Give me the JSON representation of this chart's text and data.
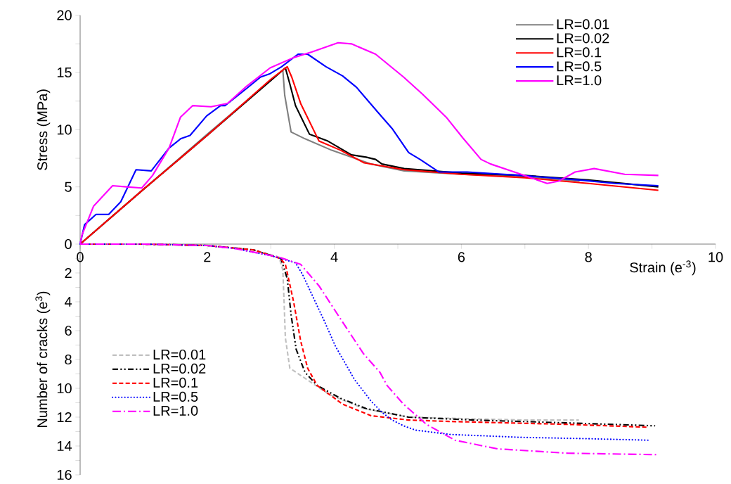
{
  "chart_data": [
    {
      "type": "line",
      "xlabel": "Strain (e$^{-3}$)",
      "ylabel": "Stress (MPa)",
      "xlim": [
        0,
        10
      ],
      "ylim": [
        0,
        20
      ],
      "xticks": [
        0,
        {
          "value": 1,
          "label": null
        },
        2,
        {
          "value": 3,
          "label": null
        },
        4,
        {
          "value": 5,
          "label": null
        },
        6,
        {
          "value": 7,
          "label": null
        },
        8,
        {
          "value": 9,
          "label": null
        },
        10
      ],
      "yticks": [
        0,
        {
          "value": 2.5,
          "label": null
        },
        5,
        {
          "value": 7.5,
          "label": null
        },
        10,
        {
          "value": 12.5,
          "label": null
        },
        15,
        {
          "value": 17.5,
          "label": null
        },
        20
      ],
      "legend": "top right",
      "line_style": "solid",
      "series": [
        {
          "name": "LR=0.01",
          "color": "#808080",
          "x": [
            0,
            1,
            2,
            3,
            3.19,
            3.22,
            3.32,
            3.54,
            3.96,
            4.58,
            5.1,
            6,
            7,
            7.86
          ],
          "values": [
            0,
            4.8,
            9.6,
            14.3,
            15.2,
            13,
            9.8,
            9.2,
            8.2,
            7.0,
            6.4,
            6.1,
            5.9,
            5.5
          ]
        },
        {
          "name": "LR=0.02",
          "color": "#000000",
          "x": [
            0,
            1,
            2,
            3,
            3.23,
            3.3,
            3.39,
            3.61,
            3.9,
            4.27,
            4.5,
            4.65,
            4.75,
            5.1,
            6,
            7,
            8,
            9.1
          ],
          "values": [
            0,
            4.8,
            9.5,
            14.3,
            15.4,
            14,
            12.1,
            9.6,
            9.0,
            7.8,
            7.6,
            7.4,
            7.0,
            6.6,
            6.2,
            6.0,
            5.6,
            5.0
          ]
        },
        {
          "name": "LR=0.1",
          "color": "#ff0000",
          "x": [
            0,
            1,
            2,
            3,
            3.26,
            3.33,
            3.47,
            3.76,
            4.1,
            4.47,
            5.1,
            6,
            7,
            8,
            9.1
          ],
          "values": [
            0,
            4.8,
            9.5,
            14.4,
            15.5,
            14.6,
            12.3,
            9.0,
            8.2,
            7.1,
            6.5,
            6.1,
            5.8,
            5.3,
            4.7
          ]
        },
        {
          "name": "LR=0.5",
          "color": "#0000ff",
          "x": [
            0,
            0.07,
            0.25,
            0.45,
            0.64,
            0.88,
            1.12,
            1.4,
            1.58,
            1.73,
            1.99,
            2.21,
            2.28,
            2.62,
            2.84,
            2.99,
            3.17,
            3.43,
            3.58,
            3.87,
            4.13,
            4.35,
            4.69,
            4.91,
            5.17,
            5.35,
            5.65,
            6.09,
            6.94,
            7.86,
            8.42,
            9.1
          ],
          "values": [
            0,
            1.7,
            2.6,
            2.6,
            3.7,
            6.5,
            6.4,
            8.4,
            9.2,
            9.5,
            11.2,
            12.1,
            12.1,
            13.6,
            14.6,
            14.9,
            15.5,
            16.6,
            16.6,
            15.5,
            14.7,
            13.7,
            11.5,
            10.1,
            8.0,
            7.4,
            6.3,
            6.3,
            6.0,
            5.6,
            5.3,
            5.1
          ]
        },
        {
          "name": "LR=1.0",
          "color": "#ff00ff",
          "x": [
            0,
            0.03,
            0.21,
            0.51,
            0.73,
            0.97,
            1.14,
            1.4,
            1.58,
            1.77,
            2.06,
            2.32,
            2.62,
            2.99,
            3.36,
            3.65,
            4.06,
            4.27,
            4.65,
            5.09,
            5.39,
            5.76,
            6.02,
            6.31,
            6.46,
            6.94,
            7.35,
            7.53,
            7.79,
            8.09,
            8.57,
            9.1
          ],
          "values": [
            0,
            0.8,
            3.3,
            5.1,
            5.0,
            4.9,
            6.0,
            8.4,
            11.1,
            12.1,
            12.0,
            12.3,
            13.8,
            15.4,
            16.3,
            16.8,
            17.6,
            17.5,
            16.6,
            14.6,
            13.1,
            11.1,
            9.3,
            7.4,
            7.0,
            6.1,
            5.3,
            5.5,
            6.3,
            6.6,
            6.1,
            6.0
          ]
        }
      ]
    },
    {
      "type": "line",
      "ylabel": "Number of cracks (e$^{3}$)",
      "xlim": [
        0,
        10
      ],
      "ylim": [
        16,
        0
      ],
      "tick_labels": "y",
      "yticks": [
        {
          "value": 1,
          "label": null
        },
        2,
        {
          "value": 3,
          "label": null
        },
        4,
        {
          "value": 5,
          "label": null
        },
        6,
        {
          "value": 7,
          "label": null
        },
        8,
        {
          "value": 9,
          "label": null
        },
        10,
        {
          "value": 11,
          "label": null
        },
        12,
        {
          "value": 13,
          "label": null
        },
        14,
        {
          "value": 15,
          "label": null
        },
        16
      ],
      "legend": "left",
      "series": [
        {
          "name": "LR=0.01",
          "color": "#c0c0c0",
          "line_style": "dashed",
          "x": [
            0,
            1,
            2,
            2.73,
            3.13,
            3.19,
            3.21,
            3.23,
            3.3,
            3.47,
            3.91,
            4.46,
            5.17,
            6,
            7,
            7.85
          ],
          "values": [
            0,
            0,
            0.1,
            0.4,
            0.9,
            1.8,
            4.0,
            6.5,
            8.6,
            9.1,
            10.4,
            11.4,
            12.0,
            12.1,
            12.2,
            12.2
          ]
        },
        {
          "name": "LR=0.02",
          "color": "#000000",
          "line_style": "dashdotdot",
          "x": [
            0,
            1,
            2,
            2.73,
            3.16,
            3.26,
            3.32,
            3.4,
            3.54,
            3.73,
            4.1,
            4.5,
            5.17,
            6.2,
            7.68,
            9.05
          ],
          "values": [
            0,
            0,
            0.1,
            0.4,
            1.0,
            2.4,
            4.9,
            7.3,
            8.9,
            9.8,
            10.7,
            11.4,
            12.0,
            12.2,
            12.4,
            12.6
          ]
        },
        {
          "name": "LR=0.1",
          "color": "#ff0000",
          "line_style": "dashed",
          "x": [
            0,
            1,
            2,
            2.73,
            3.15,
            3.23,
            3.36,
            3.47,
            3.58,
            3.73,
            4.13,
            4.58,
            5.17,
            5.83,
            7.68,
            8.94
          ],
          "values": [
            0,
            0,
            0.1,
            0.4,
            1.0,
            1.4,
            4.0,
            6.7,
            8.6,
            9.8,
            11.1,
            11.9,
            12.2,
            12.3,
            12.5,
            12.7
          ]
        },
        {
          "name": "LR=0.5",
          "color": "#0000ff",
          "line_style": "dotted",
          "x": [
            0,
            1,
            2,
            2.43,
            3.0,
            3.39,
            3.5,
            3.69,
            3.84,
            4.02,
            4.32,
            4.58,
            4.76,
            4.91,
            5.09,
            5.28,
            5.83,
            6.94,
            8.05,
            8.97
          ],
          "values": [
            0,
            0,
            0.1,
            0.3,
            0.8,
            1.3,
            2.1,
            3.9,
            5.3,
            7.1,
            9.4,
            10.9,
            11.7,
            12.2,
            12.6,
            12.9,
            13.2,
            13.4,
            13.5,
            13.6
          ]
        },
        {
          "name": "LR=1.0",
          "color": "#ff00ff",
          "line_style": "dashdot",
          "x": [
            0,
            1,
            2,
            2.43,
            3.13,
            3.47,
            3.76,
            4.1,
            4.46,
            4.72,
            4.83,
            5.09,
            5.45,
            5.9,
            6.57,
            7.68,
            9.08
          ],
          "values": [
            0,
            0,
            0.1,
            0.3,
            0.9,
            1.4,
            2.9,
            5.2,
            7.6,
            8.9,
            9.8,
            11.1,
            12.5,
            13.6,
            14.2,
            14.5,
            14.6
          ]
        }
      ]
    }
  ]
}
